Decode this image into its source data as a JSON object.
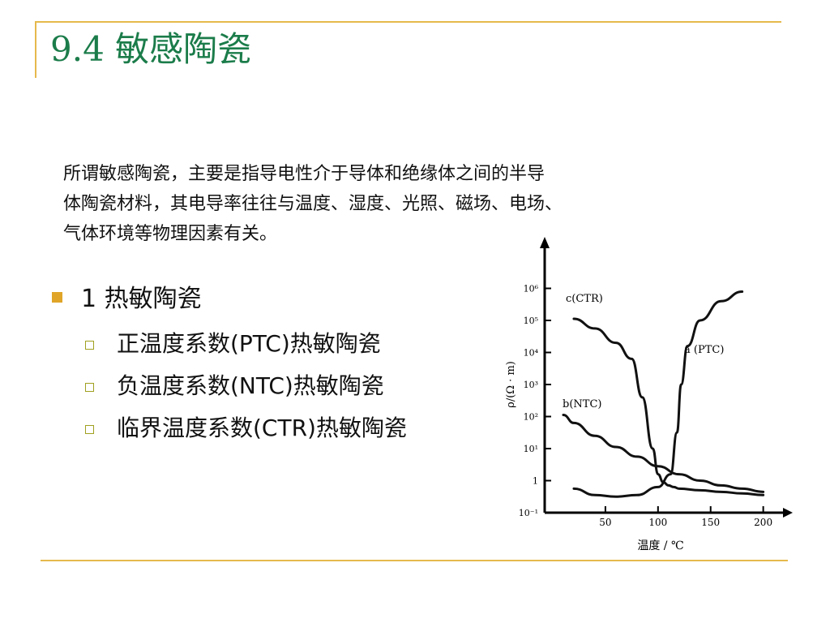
{
  "slide": {
    "title": "9.4 敏感陶瓷",
    "intro_lines": [
      "所谓敏感陶瓷，主要是指导电性介于导体和绝缘体之间的半导",
      "体陶瓷材料，其电导率往往与温度、湿度、光照、磁场、电场、",
      "气体环境等物理因素有关。"
    ],
    "bullet": "1 热敏陶瓷",
    "sub_bullets": [
      "正温度系数(PTC)热敏陶瓷",
      "负温度系数(NTC)热敏陶瓷",
      "临界温度系数(CTR)热敏陶瓷"
    ],
    "colors": {
      "title": "#1b7c4a",
      "accent": "#e6b94d",
      "bullet": "#e0a528"
    }
  },
  "chart_data": {
    "type": "line",
    "xlabel": "温度 / ℃",
    "ylabel": "ρ/(Ω · m)",
    "x_ticks": [
      "50",
      "100",
      "150",
      "200"
    ],
    "y_ticks": [
      "10⁻¹",
      "1",
      "10¹",
      "10²",
      "10³",
      "10⁴",
      "10⁵",
      "10⁶"
    ],
    "xlim": [
      0,
      220
    ],
    "ylim_log10": [
      -1,
      7
    ],
    "series": [
      {
        "name": "c(CTR)",
        "x": [
          20,
          40,
          60,
          75,
          85,
          95,
          100,
          105,
          110,
          115,
          120,
          140,
          160,
          180,
          200
        ],
        "log10_y": [
          5.05,
          4.75,
          4.3,
          3.8,
          2.6,
          1.0,
          0.2,
          -0.05,
          -0.15,
          -0.2,
          -0.25,
          -0.3,
          -0.35,
          -0.4,
          -0.45
        ]
      },
      {
        "name": "b(NTC)",
        "x": [
          10,
          20,
          40,
          60,
          80,
          100,
          120,
          140,
          160,
          180,
          200
        ],
        "log10_y": [
          2.05,
          1.8,
          1.4,
          1.05,
          0.75,
          0.45,
          0.2,
          0.0,
          -0.15,
          -0.25,
          -0.35
        ]
      },
      {
        "name": "a (PTC)",
        "x": [
          20,
          40,
          60,
          80,
          100,
          112,
          118,
          122,
          128,
          140,
          160,
          180
        ],
        "log10_y": [
          -0.25,
          -0.45,
          -0.5,
          -0.45,
          -0.2,
          0.2,
          1.5,
          3.0,
          4.2,
          5.0,
          5.6,
          5.9
        ]
      }
    ]
  }
}
